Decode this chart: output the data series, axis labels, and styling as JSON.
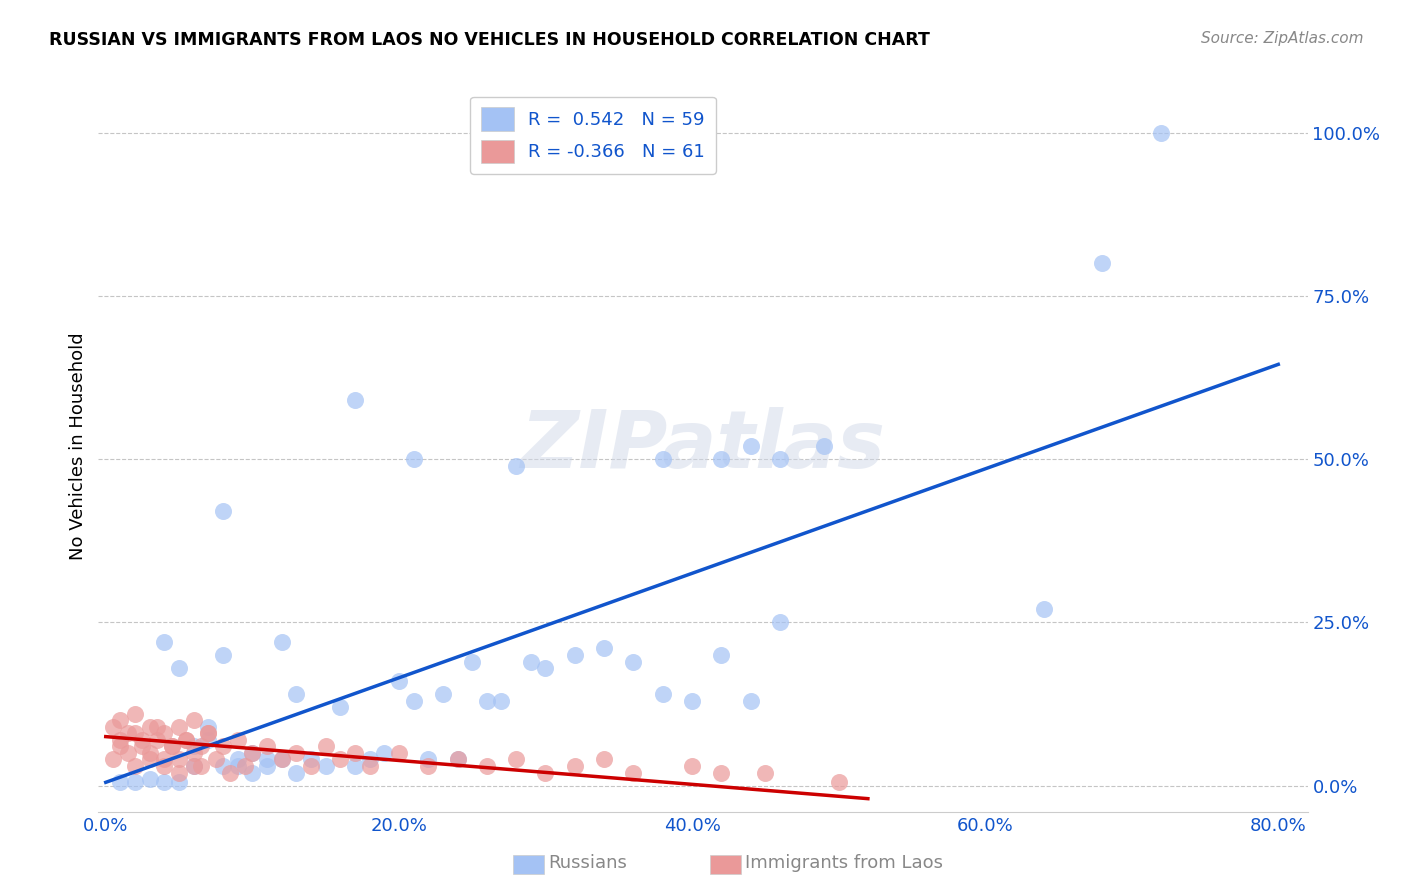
{
  "title": "RUSSIAN VS IMMIGRANTS FROM LAOS NO VEHICLES IN HOUSEHOLD CORRELATION CHART",
  "source": "Source: ZipAtlas.com",
  "ylabel": "No Vehicles in Household",
  "blue_color": "#a4c2f4",
  "pink_color": "#ea9999",
  "blue_line_color": "#1155cc",
  "pink_line_color": "#cc0000",
  "legend_text_color": "#1155cc",
  "grid_color": "#b7b7b7",
  "watermark": "ZIPatlas",
  "xlim": [
    -0.005,
    0.82
  ],
  "ylim": [
    -0.04,
    1.08
  ],
  "xtick_vals": [
    0.0,
    0.2,
    0.4,
    0.6,
    0.8
  ],
  "ytick_vals": [
    0.0,
    0.25,
    0.5,
    0.75,
    1.0
  ],
  "blue_line_x": [
    0.0,
    0.8
  ],
  "blue_line_y": [
    0.005,
    0.645
  ],
  "pink_line_x": [
    0.0,
    0.52
  ],
  "pink_line_y": [
    0.075,
    -0.02
  ],
  "russians_x": [
    0.01,
    0.02,
    0.03,
    0.04,
    0.04,
    0.05,
    0.05,
    0.06,
    0.06,
    0.07,
    0.07,
    0.08,
    0.08,
    0.09,
    0.09,
    0.1,
    0.1,
    0.11,
    0.11,
    0.12,
    0.12,
    0.13,
    0.13,
    0.14,
    0.15,
    0.16,
    0.17,
    0.18,
    0.19,
    0.2,
    0.21,
    0.22,
    0.23,
    0.24,
    0.25,
    0.26,
    0.27,
    0.28,
    0.29,
    0.3,
    0.32,
    0.34,
    0.36,
    0.38,
    0.4,
    0.42,
    0.44,
    0.46,
    0.08,
    0.17,
    0.21,
    0.38,
    0.42,
    0.44,
    0.46,
    0.49,
    0.64,
    0.68,
    0.72
  ],
  "russians_y": [
    0.005,
    0.005,
    0.01,
    0.005,
    0.22,
    0.005,
    0.18,
    0.06,
    0.03,
    0.09,
    0.07,
    0.03,
    0.2,
    0.03,
    0.04,
    0.05,
    0.02,
    0.04,
    0.03,
    0.04,
    0.22,
    0.02,
    0.14,
    0.04,
    0.03,
    0.12,
    0.03,
    0.04,
    0.05,
    0.16,
    0.13,
    0.04,
    0.14,
    0.04,
    0.19,
    0.13,
    0.13,
    0.49,
    0.19,
    0.18,
    0.2,
    0.21,
    0.19,
    0.14,
    0.13,
    0.2,
    0.13,
    0.25,
    0.42,
    0.59,
    0.5,
    0.5,
    0.5,
    0.52,
    0.5,
    0.52,
    0.27,
    0.8,
    1.0
  ],
  "laos_x": [
    0.005,
    0.01,
    0.01,
    0.015,
    0.02,
    0.02,
    0.025,
    0.03,
    0.03,
    0.035,
    0.04,
    0.04,
    0.045,
    0.05,
    0.05,
    0.055,
    0.06,
    0.06,
    0.065,
    0.07,
    0.005,
    0.01,
    0.015,
    0.02,
    0.025,
    0.03,
    0.035,
    0.04,
    0.045,
    0.05,
    0.055,
    0.06,
    0.065,
    0.07,
    0.075,
    0.08,
    0.085,
    0.09,
    0.095,
    0.1,
    0.11,
    0.12,
    0.13,
    0.14,
    0.15,
    0.16,
    0.17,
    0.18,
    0.2,
    0.22,
    0.24,
    0.26,
    0.28,
    0.3,
    0.32,
    0.34,
    0.36,
    0.4,
    0.42,
    0.45,
    0.5
  ],
  "laos_y": [
    0.09,
    0.07,
    0.1,
    0.05,
    0.08,
    0.11,
    0.06,
    0.09,
    0.04,
    0.07,
    0.08,
    0.03,
    0.06,
    0.09,
    0.04,
    0.07,
    0.1,
    0.03,
    0.06,
    0.08,
    0.04,
    0.06,
    0.08,
    0.03,
    0.07,
    0.05,
    0.09,
    0.04,
    0.06,
    0.02,
    0.07,
    0.05,
    0.03,
    0.08,
    0.04,
    0.06,
    0.02,
    0.07,
    0.03,
    0.05,
    0.06,
    0.04,
    0.05,
    0.03,
    0.06,
    0.04,
    0.05,
    0.03,
    0.05,
    0.03,
    0.04,
    0.03,
    0.04,
    0.02,
    0.03,
    0.04,
    0.02,
    0.03,
    0.02,
    0.02,
    0.005
  ]
}
